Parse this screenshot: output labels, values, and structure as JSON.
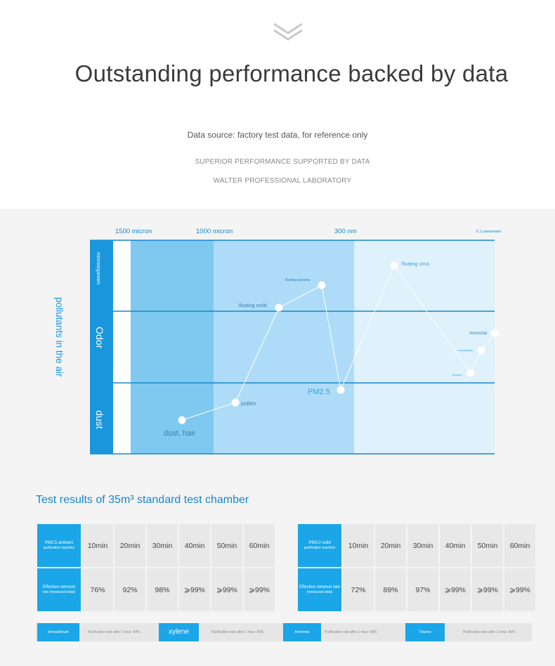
{
  "header": {
    "title": "Outstanding performance backed by data",
    "source": "Data source: factory test data, for reference only",
    "subtitle_1": "SUPERIOR PERFORMANCE SUPPORTED BY DATA",
    "subtitle_2": "WALTER PROFESSIONAL LABORATORY"
  },
  "diagram": {
    "size_labels": [
      "1500 micron",
      "1000 micron",
      "300 nm",
      "0.1 nanometer"
    ],
    "vertical_title": "pollutants in the air",
    "rows": [
      "microorganism",
      "Odor",
      "dust"
    ],
    "points": [
      {
        "label": "dust, hair"
      },
      {
        "label": "pollen"
      },
      {
        "label": "floating mold"
      },
      {
        "label": "floating bacteria"
      },
      {
        "label": "PM2.5"
      },
      {
        "label": "floating virus"
      },
      {
        "label": "benzene"
      },
      {
        "label": "formaldehyde"
      },
      {
        "label": "Ammonia"
      }
    ],
    "colors": {
      "dark_band": "#7fc8f0",
      "mid_band": "#aedcf8",
      "light_band": "#dff1fb",
      "accent": "#1787c8",
      "label_blue": "#1aa6e8"
    }
  },
  "results": {
    "title": "Test results of 35m³ standard test chamber",
    "table1": {
      "head_top": "PM2.5 ambient",
      "head_top_sub": "purification machine",
      "head_bottom": "Effective removal",
      "head_bottom_sub": "rate (measured data)",
      "times": [
        "10min",
        "20min",
        "30min",
        "40min",
        "50min",
        "60min"
      ],
      "values": [
        "76%",
        "92%",
        "98%",
        "⩾99%",
        "⩾99%",
        "⩾99%"
      ]
    },
    "table2": {
      "head_top": "PM3.0 solid",
      "head_top_sub": "purification machine",
      "head_bottom": "Effective removal rate",
      "head_bottom_sub": "(measured data)",
      "times": [
        "10min",
        "20min",
        "30min",
        "40min",
        "50min",
        "60min"
      ],
      "values": [
        "72%",
        "89%",
        "97%",
        "⩾99%",
        "⩾99%",
        "⩾99%"
      ]
    },
    "strip": [
      {
        "label": "formaldehyde",
        "rate": "Purification rate after 1 hour: 94%"
      },
      {
        "label": "xylene",
        "rate": "Purification rate after 1 hour: 96%"
      },
      {
        "label": "Ammonia",
        "rate": "Purification rate after 1 hour: 96%"
      },
      {
        "label": "Toluene",
        "rate": "Purification rate after 1 hour: 96%"
      }
    ]
  }
}
